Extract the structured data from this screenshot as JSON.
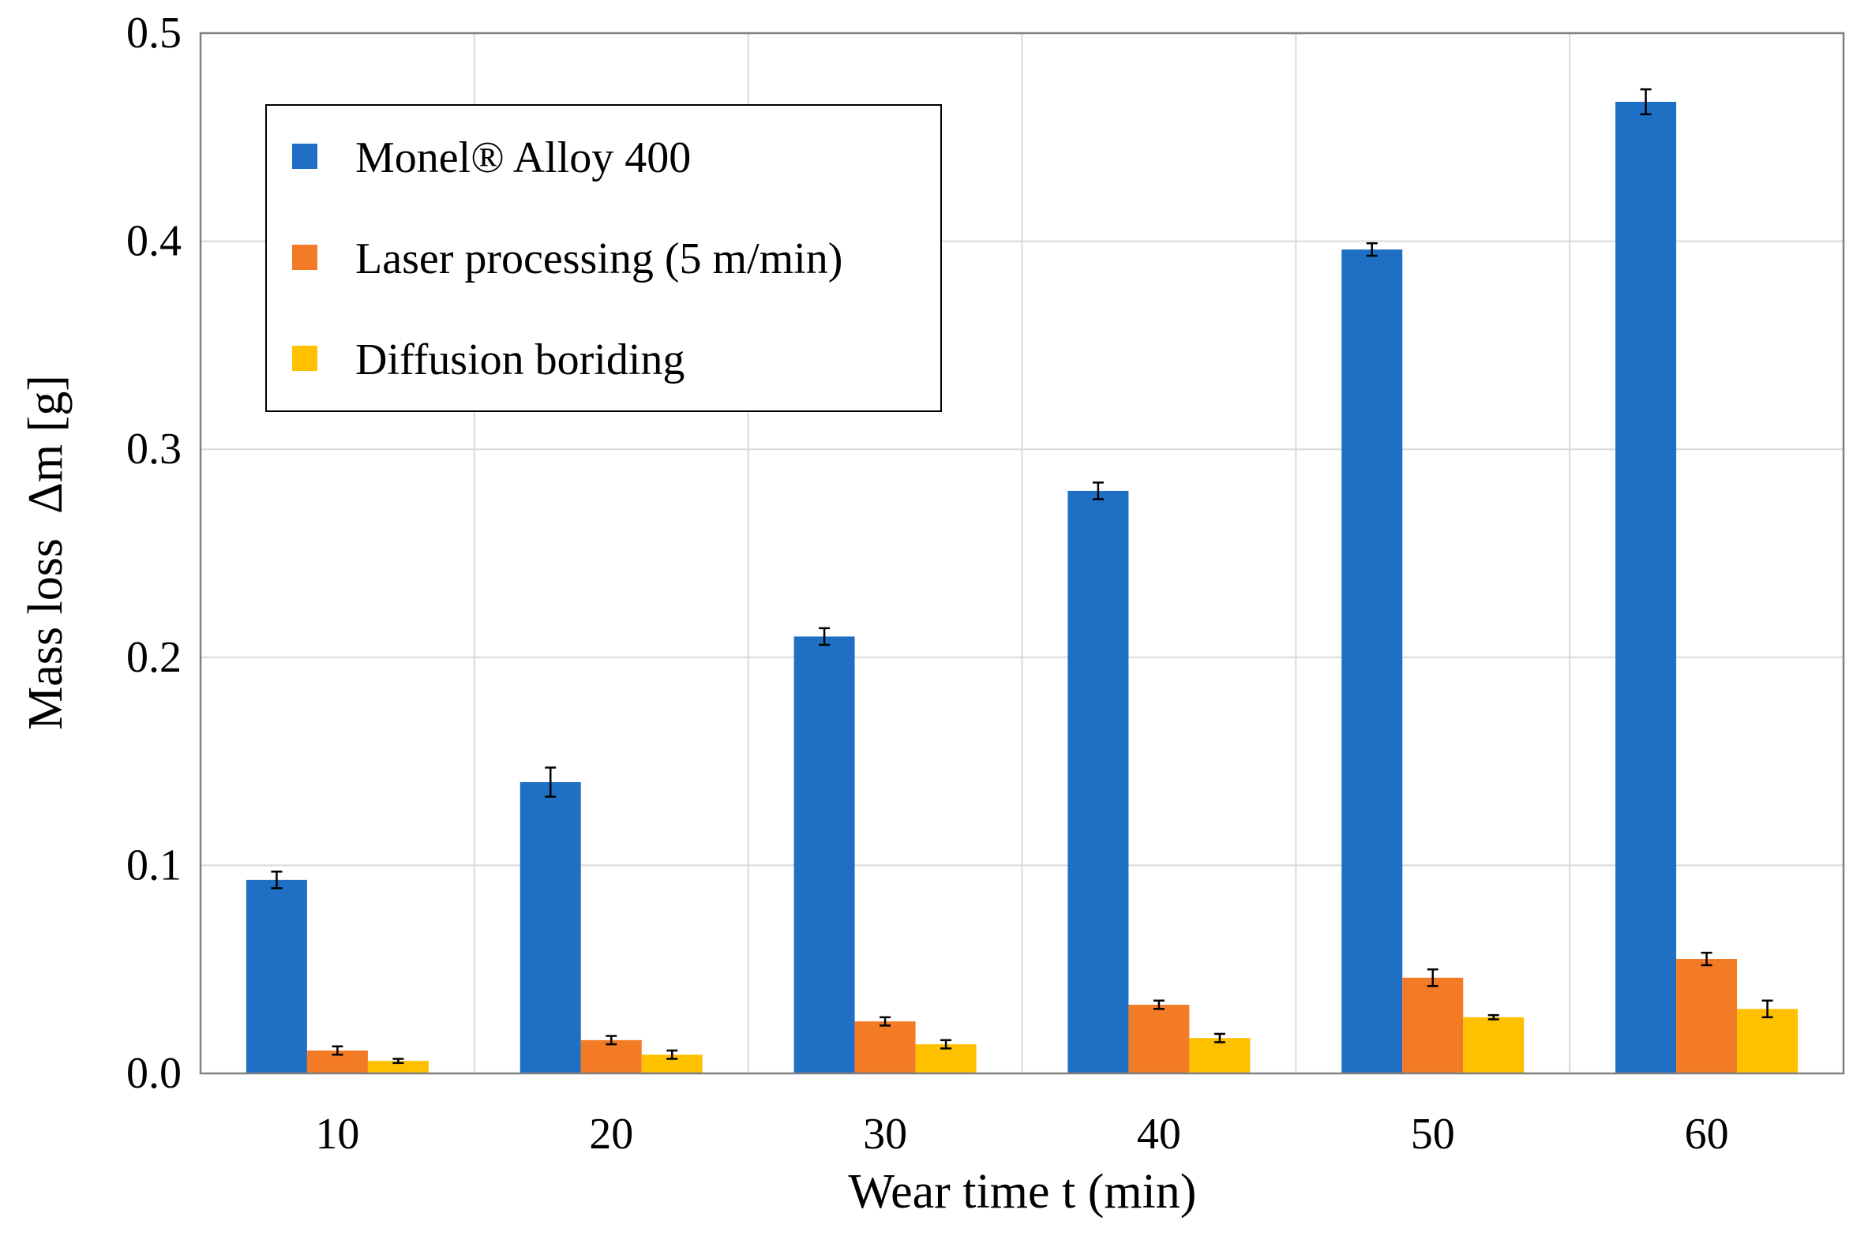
{
  "chart_data": {
    "type": "bar",
    "title": "",
    "xlabel": "Wear time t (min)",
    "ylabel": "Mass loss  Δm [g]",
    "categories": [
      "10",
      "20",
      "30",
      "40",
      "50",
      "60"
    ],
    "ylim": [
      0,
      0.5
    ],
    "yticks": [
      "0.0",
      "0.1",
      "0.2",
      "0.3",
      "0.4",
      "0.5"
    ],
    "grid": true,
    "legend_position": "top-left",
    "series": [
      {
        "name": "Monel® Alloy 400",
        "color": "#1f6fc5",
        "values": [
          0.093,
          0.14,
          0.21,
          0.28,
          0.396,
          0.467
        ],
        "errors": [
          0.004,
          0.007,
          0.004,
          0.004,
          0.003,
          0.006
        ]
      },
      {
        "name": "Laser processing (5 m/min)",
        "color": "#f47b26",
        "values": [
          0.011,
          0.016,
          0.025,
          0.033,
          0.046,
          0.055
        ],
        "errors": [
          0.002,
          0.002,
          0.002,
          0.002,
          0.004,
          0.003
        ]
      },
      {
        "name": "Diffusion boriding",
        "color": "#ffc000",
        "values": [
          0.006,
          0.009,
          0.014,
          0.017,
          0.027,
          0.031
        ],
        "errors": [
          0.001,
          0.002,
          0.002,
          0.002,
          0.001,
          0.004
        ]
      }
    ]
  }
}
